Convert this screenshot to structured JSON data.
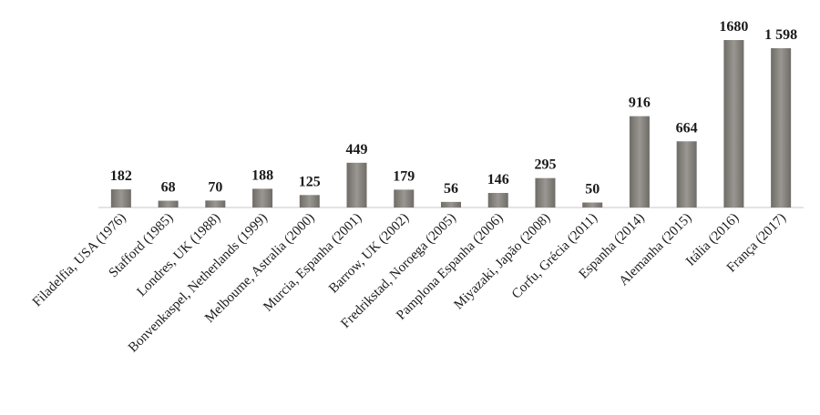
{
  "chart_data": {
    "type": "bar",
    "categories": [
      "Filadelfia, USA (1976)",
      "Stafford (1985)",
      "Londres, UK (1988)",
      "Bonvenkaspel, Netherlands (1999)",
      "Melboume, Astralia (2000)",
      "Murcia, Espanha (2001)",
      "Barrow, UK (2002)",
      "Fredrikstad, Noroega (2005)",
      "Pamplona Espanha (2006)",
      "Miyazaki, Japão (2008)",
      "Corfu, Grécia (2011)",
      "Espanha (2014)",
      "Alemanha (2015)",
      "Itália (2016)",
      "França (2017)"
    ],
    "values": [
      182,
      68,
      70,
      188,
      125,
      449,
      179,
      56,
      146,
      295,
      50,
      916,
      664,
      1680,
      1598
    ],
    "value_labels": [
      "182",
      "68",
      "70",
      "188",
      "125",
      "449",
      "179",
      "56",
      "146",
      "295",
      "50",
      "916",
      "664",
      "1680",
      "1 598"
    ],
    "color": "#8a8681"
  }
}
